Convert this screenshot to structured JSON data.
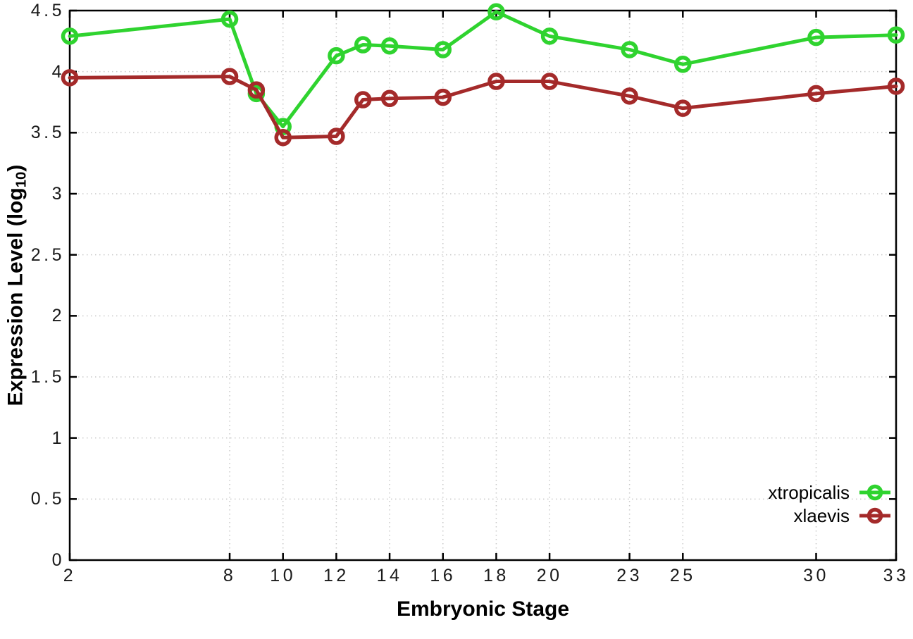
{
  "chart_data": {
    "type": "line",
    "title": "",
    "xlabel": "Embryonic Stage",
    "ylabel": "Expression Level (log10)",
    "ylabel_parts": {
      "pre": "Expression Level (log",
      "sub": "10",
      "post": ")"
    },
    "x": [
      2,
      8,
      9,
      10,
      12,
      13,
      14,
      16,
      18,
      20,
      23,
      25,
      30,
      33
    ],
    "series": [
      {
        "name": "xtropicalis",
        "color": "#2fd32f",
        "values": [
          4.29,
          4.43,
          3.82,
          3.55,
          4.13,
          4.22,
          4.21,
          4.18,
          4.49,
          4.29,
          4.18,
          4.06,
          4.28,
          4.3
        ]
      },
      {
        "name": "xlaevis",
        "color": "#a42a2a",
        "values": [
          3.95,
          3.96,
          3.85,
          3.46,
          3.47,
          3.77,
          3.78,
          3.79,
          3.92,
          3.92,
          3.8,
          3.7,
          3.82,
          3.88
        ]
      }
    ],
    "xlim": [
      2,
      33
    ],
    "ylim": [
      0,
      4.5
    ],
    "x_ticks": [
      2,
      8,
      10,
      12,
      14,
      16,
      18,
      20,
      23,
      25,
      30,
      33
    ],
    "y_ticks": [
      0,
      0.5,
      1,
      1.5,
      2,
      2.5,
      3,
      3.5,
      4,
      4.5
    ],
    "x_tick_labels": [
      "2",
      "8",
      "10",
      "12",
      "14",
      "16",
      "18",
      "20",
      "23",
      "25",
      "30",
      "33"
    ],
    "y_tick_labels": [
      "0",
      "0.5",
      "1",
      "1.5",
      "2",
      "2.5",
      "3",
      "3.5",
      "4",
      "4.5"
    ],
    "grid": true,
    "legend_position": "inside-bottom-right",
    "marker": "open-circle",
    "colors": {
      "background": "#ffffff",
      "border": "#000000",
      "grid": "#c9c9c9",
      "tick_text": "#1a1a1a"
    }
  }
}
